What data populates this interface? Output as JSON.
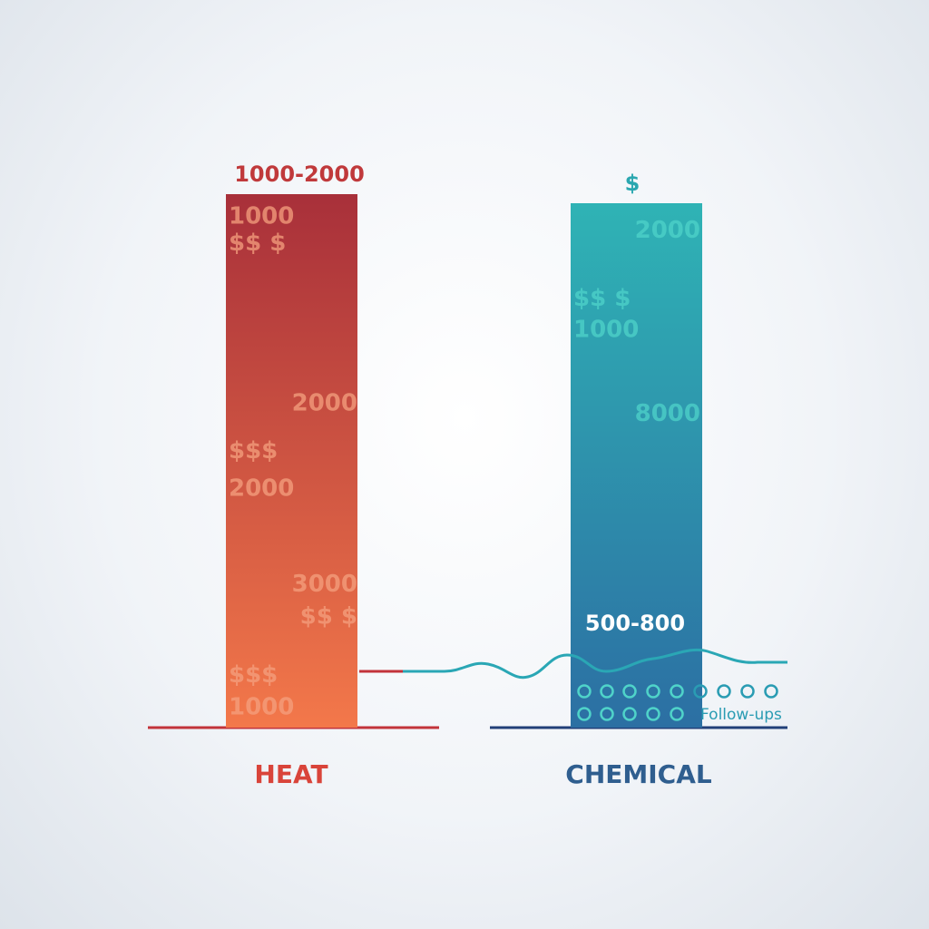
{
  "chart_data": {
    "type": "bar",
    "categories": [
      "HEAT",
      "CHEMICAL"
    ],
    "bars": [
      {
        "category": "HEAT",
        "range_label": "1000-2000",
        "color_top": "#a8303a",
        "color_bottom": "#f3784a",
        "label_color": "#c0393b",
        "inner_marks": [
          {
            "text": "1000",
            "relative_height": 0.96,
            "align": "left"
          },
          {
            "text": "$$ $",
            "relative_height": 0.91,
            "align": "left"
          },
          {
            "text": "2000",
            "relative_height": 0.61,
            "align": "right"
          },
          {
            "text": "$$$",
            "relative_height": 0.52,
            "align": "left"
          },
          {
            "text": "2000",
            "relative_height": 0.45,
            "align": "left"
          },
          {
            "text": "3000",
            "relative_height": 0.27,
            "align": "right"
          },
          {
            "text": "$$ $",
            "relative_height": 0.21,
            "align": "right"
          },
          {
            "text": "$$$",
            "relative_height": 0.1,
            "align": "left"
          },
          {
            "text": "1000",
            "relative_height": 0.04,
            "align": "left"
          }
        ]
      },
      {
        "category": "CHEMICAL",
        "range_label": "$",
        "color_top": "#2fb3b5",
        "color_bottom": "#2c6fa3",
        "label_color": "#2aa7b0",
        "inner_marks": [
          {
            "text": "2000",
            "relative_height": 0.95,
            "align": "right"
          },
          {
            "text": "$$ $",
            "relative_height": 0.82,
            "align": "left"
          },
          {
            "text": "1000",
            "relative_height": 0.76,
            "align": "left"
          },
          {
            "text": "8000",
            "relative_height": 0.6,
            "align": "right"
          }
        ]
      }
    ],
    "annotation": {
      "text": "500-800",
      "color": "#ffffff"
    },
    "followups": {
      "label": "Follow-ups",
      "color": "#2a9cb3"
    },
    "category_label_colors": {
      "HEAT": "#d9443a",
      "CHEMICAL": "#2f5e8f"
    }
  }
}
